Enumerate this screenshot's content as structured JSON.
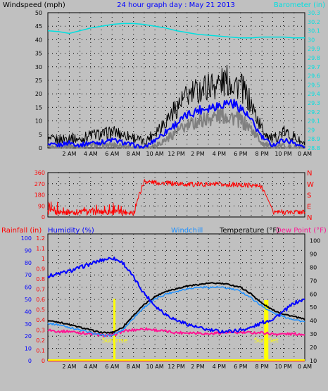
{
  "chart_data": [
    {
      "type": "line",
      "title": "24 hour graph day : May 21 2013",
      "x_ticks": [
        "2 AM",
        "4 AM",
        "6 AM",
        "8 AM",
        "10 AM",
        "12 PM",
        "2 PM",
        "4 PM",
        "6 PM",
        "8 PM",
        "10 PM",
        "0 AM"
      ],
      "y_left_label": "Windspeed (mph)",
      "y_left_range": [
        0,
        50
      ],
      "y_left_ticks": [
        "0",
        "5",
        "10",
        "15",
        "20",
        "25",
        "30",
        "35",
        "40",
        "45",
        "50"
      ],
      "y_right_label": "Barometer (in)",
      "y_right_range": [
        28.8,
        30.3
      ],
      "y_right_ticks": [
        "28.8",
        "28.9",
        "29",
        "29.1",
        "29.2",
        "29.3",
        "29.4",
        "29.5",
        "29.6",
        "29.7",
        "29.8",
        "29.9",
        "30",
        "30.1",
        "30.2",
        "30.3"
      ],
      "x_hours": [
        0,
        1,
        2,
        3,
        4,
        5,
        6,
        7,
        8,
        9,
        10,
        11,
        12,
        13,
        14,
        15,
        16,
        17,
        18,
        19,
        20,
        21,
        22,
        23,
        24
      ],
      "series": [
        {
          "color": "#000000",
          "values": [
            3,
            3,
            4,
            3,
            5,
            5,
            6,
            5,
            4,
            2,
            6,
            10,
            15,
            19,
            21,
            23,
            24,
            25,
            23,
            16,
            7,
            3,
            6,
            4,
            1
          ]
        },
        {
          "color": "#0000ff",
          "values": [
            1,
            1,
            2,
            1,
            2,
            2,
            3,
            2,
            1,
            0,
            3,
            6,
            9,
            12,
            14,
            15,
            16,
            17,
            15,
            10,
            4,
            1,
            3,
            2,
            0
          ]
        },
        {
          "color": "#808080",
          "values": [
            0,
            0,
            1,
            0,
            1,
            1,
            1,
            1,
            0,
            0,
            1,
            3,
            6,
            8,
            10,
            11,
            12,
            12,
            10,
            7,
            2,
            0,
            1,
            0,
            0
          ]
        },
        {
          "color": "#00e0e0",
          "axis": "right",
          "values": [
            30.1,
            30.09,
            30.07,
            30.1,
            30.13,
            30.15,
            30.17,
            30.18,
            30.18,
            30.17,
            30.15,
            30.13,
            30.1,
            30.08,
            30.06,
            30.05,
            30.04,
            30.03,
            30.02,
            30.02,
            30.03,
            30.03,
            30.03,
            30.02,
            30.02
          ]
        }
      ]
    },
    {
      "type": "scatter",
      "y_left_ticks": [
        "0",
        "90",
        "180",
        "270",
        "360"
      ],
      "y_left_range": [
        0,
        360
      ],
      "y_right_ticks": [
        "N",
        "E",
        "S",
        "W",
        "N"
      ],
      "x_hours": [
        0,
        1,
        2,
        3,
        4,
        5,
        6,
        7,
        8,
        9,
        10,
        11,
        12,
        13,
        14,
        15,
        16,
        17,
        18,
        19,
        20,
        21,
        22,
        23,
        24
      ],
      "series": [
        {
          "color": "#ff0000",
          "values": [
            60,
            40,
            50,
            45,
            45,
            55,
            60,
            55,
            50,
            290,
            280,
            275,
            270,
            265,
            265,
            265,
            262,
            262,
            260,
            258,
            245,
            60,
            50,
            40,
            35
          ]
        }
      ]
    },
    {
      "type": "line",
      "labels": {
        "rainfall": "Rainfall (in)",
        "humidity": "Humidity (%)",
        "windchill": "Windchill",
        "temperature": "Temperature (°F)",
        "dewpoint": "Dew Point (°F)"
      },
      "y_rain_ticks": [
        "0",
        "0.1",
        "0.2",
        "0.3",
        "0.4",
        "0.5",
        "0.6",
        "0.7",
        "0.8",
        "0.9",
        "1",
        "1.1",
        "1.2"
      ],
      "y_rain_range": [
        0,
        1.2
      ],
      "y_hum_ticks": [
        "0",
        "10",
        "20",
        "30",
        "40",
        "50",
        "60",
        "70",
        "80",
        "90",
        "100"
      ],
      "y_hum_range": [
        0,
        100
      ],
      "y_temp_ticks": [
        "10",
        "20",
        "30",
        "40",
        "50",
        "60",
        "70",
        "80",
        "90",
        "100"
      ],
      "y_temp_range": [
        10,
        105
      ],
      "annotations": {
        "sunrise": "Sun rise",
        "sunset": "Sun Set"
      },
      "sunrise_hour": 6.25,
      "sunset_hour": 20.4,
      "x_hours": [
        0,
        1,
        2,
        3,
        4,
        5,
        6,
        7,
        8,
        9,
        10,
        11,
        12,
        13,
        14,
        15,
        16,
        17,
        18,
        19,
        20,
        21,
        22,
        23,
        24
      ],
      "series": [
        {
          "name": "Humidity (%)",
          "color": "#0000ff",
          "axis": "humidity",
          "values": [
            69,
            71,
            73,
            76,
            79,
            82,
            84,
            80,
            68,
            55,
            45,
            38,
            33,
            30,
            27,
            25,
            24,
            24,
            25,
            27,
            31,
            34,
            40,
            47,
            50
          ]
        },
        {
          "name": "Temperature (°F)",
          "color": "#000000",
          "axis": "temp",
          "values": [
            40,
            39,
            37,
            35,
            33,
            31,
            31,
            35,
            44,
            52,
            58,
            62,
            64,
            66,
            67,
            68,
            68,
            67,
            65,
            60,
            53,
            48,
            45,
            43,
            41
          ]
        },
        {
          "name": "Windchill",
          "color": "#1e90ff",
          "axis": "temp",
          "values": [
            38,
            37,
            35,
            33,
            31,
            29,
            29,
            33,
            42,
            50,
            56,
            60,
            62,
            64,
            65,
            65,
            65,
            64,
            62,
            57,
            51,
            46,
            43,
            41,
            39
          ]
        },
        {
          "name": "Dew Point (°F)",
          "color": "#ff1493",
          "axis": "temp",
          "values": [
            33,
            32,
            32,
            31,
            30,
            29,
            29,
            32,
            33,
            34,
            33,
            32,
            31,
            31,
            31,
            30,
            31,
            31,
            31,
            31,
            31,
            30,
            30,
            30,
            30
          ]
        },
        {
          "name": "Rainfall (in)",
          "color": "#ff0000",
          "axis": "rain",
          "values": [
            0,
            0,
            0,
            0,
            0,
            0,
            0,
            0,
            0,
            0,
            0,
            0,
            0,
            0,
            0,
            0,
            0,
            0,
            0,
            0,
            0,
            0,
            0,
            0,
            0
          ]
        }
      ]
    }
  ]
}
